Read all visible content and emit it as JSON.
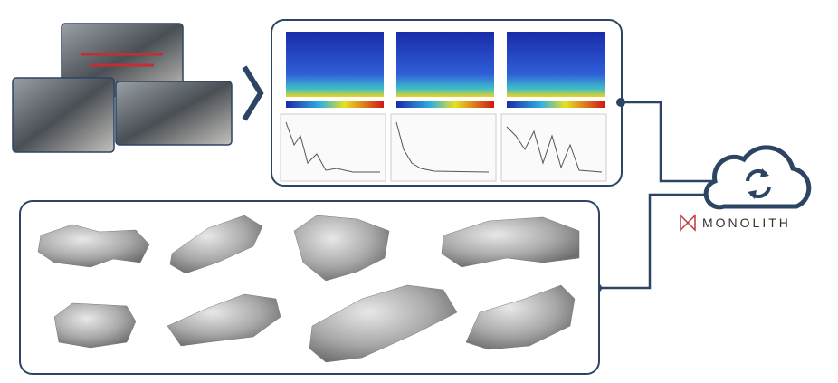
{
  "logo": {
    "text": "MONOLITH"
  }
}
